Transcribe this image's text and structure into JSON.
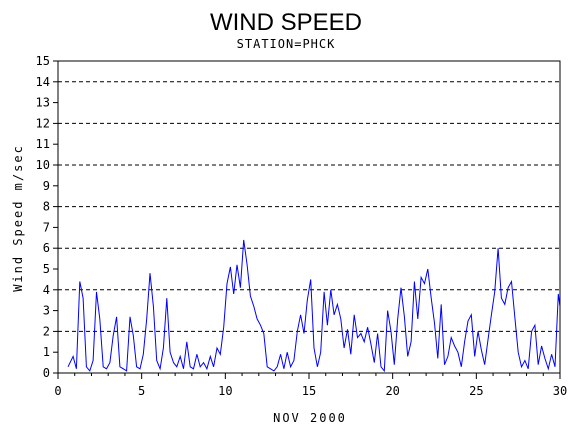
{
  "chart_data": {
    "type": "line",
    "title": "WIND SPEED",
    "subtitle": "STATION=PHCK",
    "xlabel": "NOV 2000",
    "ylabel": "Wind Speed m/sec",
    "xlim": [
      0,
      30
    ],
    "ylim": [
      0,
      15
    ],
    "xticks": [
      0,
      5,
      10,
      15,
      20,
      25,
      30
    ],
    "yticks": [
      0,
      1,
      2,
      3,
      4,
      5,
      6,
      7,
      8,
      9,
      10,
      11,
      12,
      13,
      14,
      15
    ],
    "dashed_gridlines_y": [
      2,
      4,
      6,
      8,
      10,
      12,
      14
    ],
    "grid": "horizontal dashed at even values",
    "series_color": "#0000ff",
    "series": [
      {
        "x": [
          0.6,
          0.9,
          1.1,
          1.3,
          1.5,
          1.7,
          1.9,
          2.1,
          2.3,
          2.5,
          2.7,
          2.9,
          3.1,
          3.3,
          3.5,
          3.7,
          3.9,
          4.1,
          4.3,
          4.5,
          4.7,
          4.9,
          5.1,
          5.3,
          5.5,
          5.7,
          5.9,
          6.1,
          6.3,
          6.5,
          6.7,
          6.9,
          7.1,
          7.3,
          7.5,
          7.7,
          7.9,
          8.1,
          8.3,
          8.5,
          8.7,
          8.9,
          9.1,
          9.3,
          9.5,
          9.7,
          9.9,
          10.1,
          10.3,
          10.5,
          10.7,
          10.9,
          11.1,
          11.3,
          11.5,
          11.7,
          11.9,
          12.1,
          12.3,
          12.5,
          12.7,
          12.9,
          13.1,
          13.3,
          13.5,
          13.7,
          13.9,
          14.1,
          14.3,
          14.5,
          14.7,
          14.9,
          15.1,
          15.3,
          15.5,
          15.7,
          15.9,
          16.1,
          16.3,
          16.5,
          16.7,
          16.9,
          17.1,
          17.3,
          17.5,
          17.7,
          17.9,
          18.1,
          18.3,
          18.5,
          18.7,
          18.9,
          19.1,
          19.3,
          19.5,
          19.7,
          19.9,
          20.1,
          20.3,
          20.5,
          20.7,
          20.9,
          21.1,
          21.3,
          21.5,
          21.7,
          21.9,
          22.1,
          22.3,
          22.5,
          22.7,
          22.9,
          23.1,
          23.3,
          23.5,
          23.7,
          23.9,
          24.1,
          24.3,
          24.5,
          24.7,
          24.9,
          25.1,
          25.3,
          25.5,
          25.7,
          25.9,
          26.1,
          26.3,
          26.5,
          26.7,
          26.9,
          27.1,
          27.3,
          27.5,
          27.7,
          27.9,
          28.1,
          28.3,
          28.5,
          28.7,
          28.9,
          29.1,
          29.3,
          29.5,
          29.7,
          29.9,
          30.0
        ],
        "y": [
          0.3,
          0.8,
          0.2,
          4.4,
          3.6,
          0.3,
          0.1,
          0.6,
          3.9,
          2.6,
          0.3,
          0.2,
          0.5,
          1.8,
          2.7,
          0.3,
          0.2,
          0.1,
          2.7,
          1.8,
          0.3,
          0.2,
          0.9,
          2.6,
          4.8,
          3.2,
          0.6,
          0.2,
          1.2,
          3.6,
          1.0,
          0.5,
          0.3,
          0.8,
          0.2,
          1.5,
          0.3,
          0.2,
          0.9,
          0.3,
          0.5,
          0.2,
          0.8,
          0.3,
          1.2,
          0.9,
          2.2,
          4.3,
          5.1,
          3.8,
          5.2,
          4.1,
          6.4,
          5.2,
          3.7,
          3.2,
          2.6,
          2.3,
          1.9,
          0.3,
          0.2,
          0.1,
          0.3,
          0.9,
          0.2,
          1.0,
          0.3,
          0.6,
          2.0,
          2.8,
          1.9,
          3.5,
          4.5,
          1.2,
          0.3,
          1.0,
          3.9,
          2.3,
          4.0,
          2.8,
          3.3,
          2.6,
          1.2,
          2.1,
          0.9,
          2.8,
          1.7,
          1.9,
          1.5,
          2.2,
          1.4,
          0.5,
          1.9,
          0.3,
          0.1,
          3.0,
          2.0,
          0.4,
          2.6,
          4.1,
          2.7,
          0.8,
          1.5,
          4.4,
          2.6,
          4.6,
          4.3,
          5.0,
          3.6,
          2.4,
          0.7,
          3.3,
          0.4,
          0.8,
          1.7,
          1.3,
          1.0,
          0.3,
          1.5,
          2.5,
          2.8,
          0.8,
          2.0,
          1.1,
          0.4,
          1.6,
          2.8,
          3.9,
          6.0,
          3.6,
          3.3,
          4.1,
          4.4,
          2.7,
          1.0,
          0.3,
          0.6,
          0.2,
          2.0,
          2.3,
          0.4,
          1.3,
          0.7,
          0.2,
          0.9,
          0.3,
          3.8,
          3.2
        ]
      }
    ]
  }
}
